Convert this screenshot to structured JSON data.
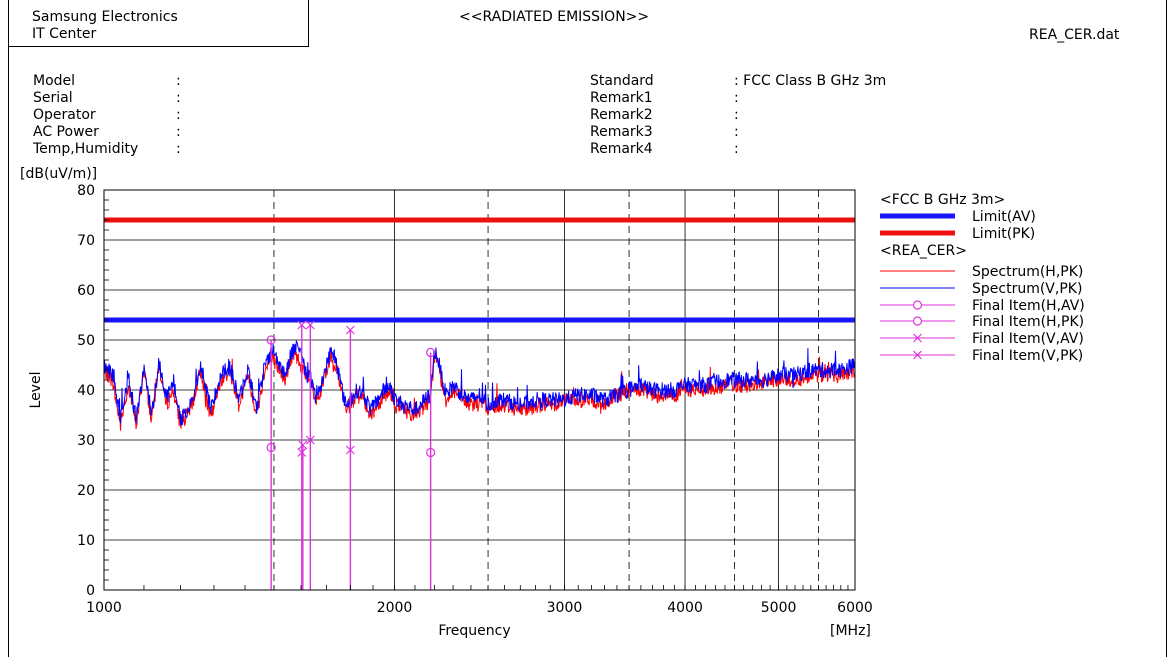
{
  "header": {
    "org_line1": "Samsung Electronics",
    "org_line2": "IT Center",
    "report_title": "<<RADIATED EMISSION>>",
    "filename": "REA_CER.dat"
  },
  "info_left": [
    {
      "label": "Model",
      "value": ":"
    },
    {
      "label": "Serial",
      "value": ":"
    },
    {
      "label": "Operator",
      "value": ":"
    },
    {
      "label": "AC Power",
      "value": ":"
    },
    {
      "label": "Temp,Humidity",
      "value": ":"
    }
  ],
  "info_right": [
    {
      "label": "Standard",
      "value": ": FCC Class B GHz 3m"
    },
    {
      "label": "Remark1",
      "value": ":"
    },
    {
      "label": "Remark2",
      "value": ":"
    },
    {
      "label": "Remark3",
      "value": ":"
    },
    {
      "label": "Remark4",
      "value": ":"
    }
  ],
  "colors": {
    "limit_av": "#1515ff",
    "limit_pk": "#ee1111",
    "spectrum_h": "#ff0000",
    "spectrum_v": "#0000ff",
    "final": "#dd33dd",
    "grid": "#000000"
  },
  "chart_data": {
    "type": "line",
    "xscale": "log",
    "xlim": [
      1000,
      6000
    ],
    "ylim": [
      0,
      80
    ],
    "xlabel": "Frequency",
    "xunit": "[MHz]",
    "ylabel": "Level",
    "yunit": "[dB(uV/m)]",
    "xticks": [
      1000,
      2000,
      3000,
      4000,
      5000,
      6000
    ],
    "yticks": [
      0,
      10,
      20,
      30,
      40,
      50,
      60,
      70,
      80
    ],
    "grid": true,
    "legend": {
      "position": "right",
      "group1_title": "<FCC B GHz 3m>",
      "group2_title": "<REA_CER>",
      "entries": [
        {
          "label": "Limit(AV)",
          "style": "limit-av"
        },
        {
          "label": "Limit(PK)",
          "style": "limit-pk"
        },
        {
          "label": "Spectrum(H,PK)",
          "style": "spectrum-h"
        },
        {
          "label": "Spectrum(V,PK)",
          "style": "spectrum-v"
        },
        {
          "label": "Final Item(H,AV)",
          "style": "final-circle"
        },
        {
          "label": "Final Item(H,PK)",
          "style": "final-circle"
        },
        {
          "label": "Final Item(V,AV)",
          "style": "final-cross"
        },
        {
          "label": "Final Item(V,PK)",
          "style": "final-cross"
        }
      ]
    },
    "limits": [
      {
        "name": "Limit(AV)",
        "value": 54
      },
      {
        "name": "Limit(PK)",
        "value": 74
      }
    ],
    "spectrum_envelope": {
      "freqs": [
        1000,
        1020,
        1040,
        1060,
        1080,
        1100,
        1120,
        1140,
        1160,
        1180,
        1200,
        1230,
        1260,
        1290,
        1320,
        1350,
        1380,
        1410,
        1440,
        1470,
        1500,
        1520,
        1540,
        1560,
        1580,
        1600,
        1620,
        1640,
        1660,
        1680,
        1700,
        1720,
        1740,
        1760,
        1780,
        1800,
        1830,
        1860,
        1890,
        1920,
        1950,
        1980,
        2000,
        2050,
        2100,
        2150,
        2180,
        2200,
        2220,
        2260,
        2300,
        2350,
        2400,
        2450,
        2500,
        2550,
        2600,
        2700,
        2800,
        2900,
        3000,
        3100,
        3200,
        3300,
        3400,
        3500,
        3600,
        3700,
        3800,
        3900,
        4000,
        4200,
        4400,
        4600,
        4800,
        5000,
        5200,
        5400,
        5600,
        5800,
        6000
      ],
      "h": [
        44,
        42,
        33,
        41,
        33,
        44,
        34,
        45,
        37,
        40,
        33,
        36,
        44,
        34,
        42,
        44,
        37,
        43,
        35,
        45,
        46,
        44,
        42,
        46,
        47,
        45,
        42,
        41,
        37,
        40,
        44,
        47,
        45,
        40,
        36,
        37,
        39,
        38,
        35,
        37,
        39,
        40,
        37,
        36,
        35,
        37,
        38,
        47,
        45,
        38,
        40,
        38,
        37,
        38,
        36,
        37,
        37,
        36,
        37,
        37,
        38,
        38,
        38,
        37,
        39,
        40,
        40,
        39,
        39,
        39,
        40,
        40,
        41,
        41,
        41,
        42,
        42,
        43,
        43,
        43,
        44
      ],
      "v": [
        45,
        43,
        34,
        43,
        34,
        45,
        35,
        46,
        38,
        42,
        34,
        37,
        45,
        36,
        43,
        45,
        38,
        44,
        36,
        46,
        48,
        45,
        43,
        47,
        49,
        48,
        43,
        42,
        38,
        41,
        45,
        48,
        46,
        41,
        37,
        38,
        40,
        39,
        36,
        38,
        40,
        41,
        38,
        37,
        36,
        38,
        39,
        48,
        46,
        39,
        41,
        39,
        38,
        39,
        37,
        38,
        38,
        37,
        38,
        38,
        38,
        39,
        39,
        38,
        39,
        40,
        41,
        40,
        40,
        40,
        41,
        41,
        42,
        42,
        42,
        43,
        43,
        44,
        44,
        44,
        45
      ]
    },
    "final_items": [
      {
        "series": "Final Item(H,PK)",
        "freq": 1490,
        "level": 50
      },
      {
        "series": "Final Item(H,AV)",
        "freq": 1490,
        "level": 28.5
      },
      {
        "series": "Final Item(V,PK)",
        "freq": 1603,
        "level": 53
      },
      {
        "series": "Final Item(V,AV)",
        "freq": 1603,
        "level": 27.5
      },
      {
        "series": "Final Item(V,AV)",
        "freq": 1607,
        "level": 29
      },
      {
        "series": "Final Item(V,PK)",
        "freq": 1636,
        "level": 53
      },
      {
        "series": "Final Item(V,AV)",
        "freq": 1636,
        "level": 30
      },
      {
        "series": "Final Item(V,PK)",
        "freq": 1800,
        "level": 52
      },
      {
        "series": "Final Item(V,AV)",
        "freq": 1800,
        "level": 28
      },
      {
        "series": "Final Item(H,PK)",
        "freq": 2180,
        "level": 47.5
      },
      {
        "series": "Final Item(H,AV)",
        "freq": 2180,
        "level": 27.5
      }
    ]
  }
}
